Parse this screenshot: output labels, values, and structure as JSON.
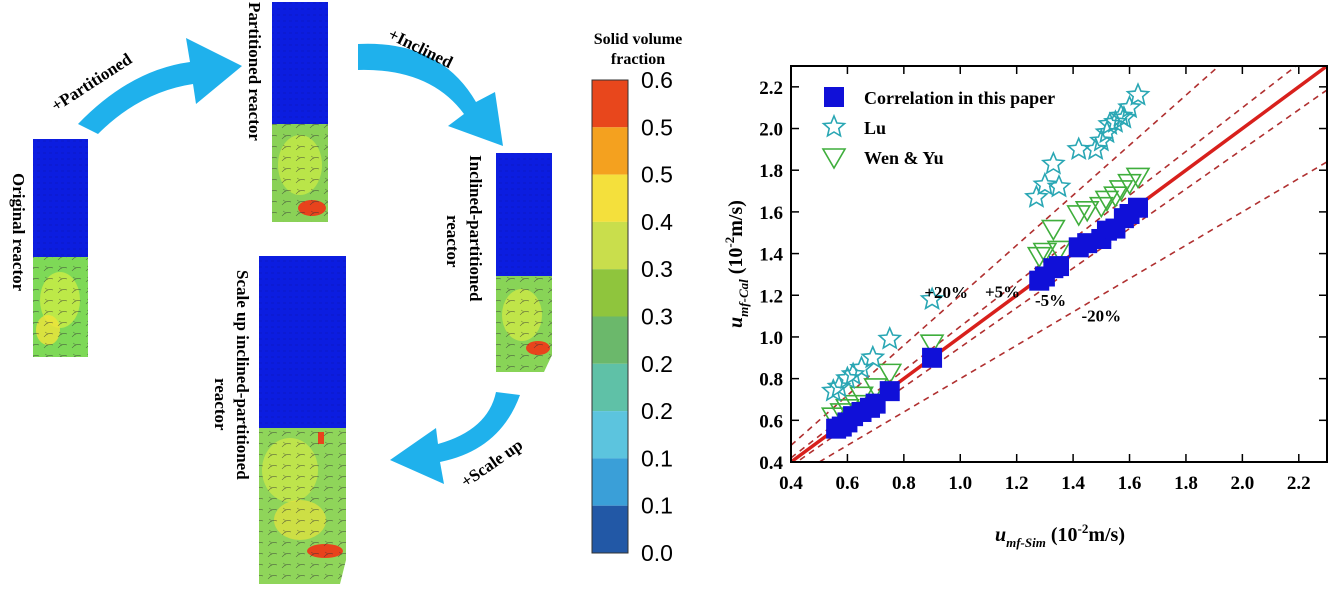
{
  "left_panel": {
    "reactors": {
      "original": "Original reactor",
      "partitioned": "Partitioned reactor",
      "inclined_line1": "Inclined-partitioned",
      "inclined_line2": "reactor",
      "scaleup_line1": "Scale up inclined-partitioned",
      "scaleup_line2": "reactor"
    },
    "arrows": {
      "partitioned": "+Partitioned",
      "inclined": "+Inclined",
      "scale_up": "+Scale up"
    },
    "arrow_color": "#1fb1ec",
    "colorbar": {
      "title_line1": "Solid volume",
      "title_line2": "fraction",
      "ticks": [
        "0.6",
        "0.5",
        "0.5",
        "0.4",
        "0.3",
        "0.3",
        "0.2",
        "0.2",
        "0.1",
        "0.1",
        "0.0"
      ],
      "colors": [
        "#e8471c",
        "#f4a11f",
        "#f4e03c",
        "#c9de4c",
        "#8fc53d",
        "#6bb86b",
        "#5fc1a7",
        "#5cc4de",
        "#3a9fd8",
        "#2258a6"
      ]
    }
  },
  "chart_data": {
    "type": "scatter",
    "xlabel_main": "u",
    "xlabel_sub": "mf-Sim",
    "xlabel_unit": " (10",
    "xlabel_exp": "-2",
    "xlabel_tail": "m/s)",
    "ylabel_main": "u",
    "ylabel_sub": "mf-Cal",
    "ylabel_unit": " (10",
    "ylabel_exp": "-2",
    "ylabel_tail": "m/s)",
    "xlim": [
      0.4,
      2.3
    ],
    "ylim": [
      0.4,
      2.3
    ],
    "xticks": [
      "0.4",
      "0.6",
      "0.8",
      "1.0",
      "1.2",
      "1.4",
      "1.6",
      "1.8",
      "2.0",
      "2.2"
    ],
    "yticks": [
      "0.4",
      "0.6",
      "0.8",
      "1.0",
      "1.2",
      "1.4",
      "1.6",
      "1.8",
      "2.0",
      "2.2"
    ],
    "grid": false,
    "legend_position": "top-left",
    "series": [
      {
        "name": "Correlation in this paper",
        "marker": "square",
        "color": "#1010d8",
        "x": [
          0.56,
          0.58,
          0.6,
          0.62,
          0.65,
          0.68,
          0.7,
          0.75,
          0.9,
          1.28,
          1.3,
          1.33,
          1.35,
          1.42,
          1.45,
          1.5,
          1.52,
          1.55,
          1.58,
          1.6,
          1.63
        ],
        "y": [
          0.56,
          0.57,
          0.59,
          0.62,
          0.64,
          0.66,
          0.68,
          0.74,
          0.9,
          1.27,
          1.29,
          1.33,
          1.34,
          1.43,
          1.45,
          1.47,
          1.51,
          1.52,
          1.57,
          1.59,
          1.62
        ]
      },
      {
        "name": "Lu",
        "marker": "star",
        "color": "#2aa7b4",
        "x": [
          0.55,
          0.57,
          0.6,
          0.62,
          0.65,
          0.69,
          0.75,
          0.9,
          1.27,
          1.3,
          1.33,
          1.35,
          1.42,
          1.48,
          1.5,
          1.52,
          1.53,
          1.55,
          1.57,
          1.58,
          1.6,
          1.63
        ],
        "y": [
          0.74,
          0.76,
          0.8,
          0.82,
          0.85,
          0.9,
          0.99,
          1.18,
          1.67,
          1.73,
          1.83,
          1.72,
          1.9,
          1.9,
          1.94,
          1.98,
          2.02,
          2.03,
          2.06,
          2.05,
          2.1,
          2.16
        ]
      },
      {
        "name": "Wen & Yu",
        "marker": "triangle-down",
        "color": "#3fae3c",
        "x": [
          0.55,
          0.58,
          0.6,
          0.63,
          0.65,
          0.7,
          0.75,
          0.9,
          1.28,
          1.3,
          1.33,
          1.35,
          1.42,
          1.45,
          1.5,
          1.52,
          1.55,
          1.57,
          1.6,
          1.63
        ],
        "y": [
          0.62,
          0.64,
          0.66,
          0.68,
          0.72,
          0.76,
          0.83,
          0.97,
          1.39,
          1.41,
          1.52,
          1.42,
          1.59,
          1.61,
          1.63,
          1.66,
          1.68,
          1.71,
          1.74,
          1.77
        ]
      }
    ],
    "reference_lines": [
      {
        "label": "+20%",
        "factor": 1.2,
        "style": "dashed",
        "color": "#b03030"
      },
      {
        "label": "+5%",
        "factor": 1.05,
        "style": "dashed",
        "color": "#b03030"
      },
      {
        "label": "",
        "factor": 1.0,
        "style": "solid",
        "color": "#d8201c"
      },
      {
        "label": "-5%",
        "factor": 0.95,
        "style": "dashed",
        "color": "#b03030"
      },
      {
        "label": "-20%",
        "factor": 0.8,
        "style": "dashed",
        "color": "#b03030"
      }
    ]
  }
}
